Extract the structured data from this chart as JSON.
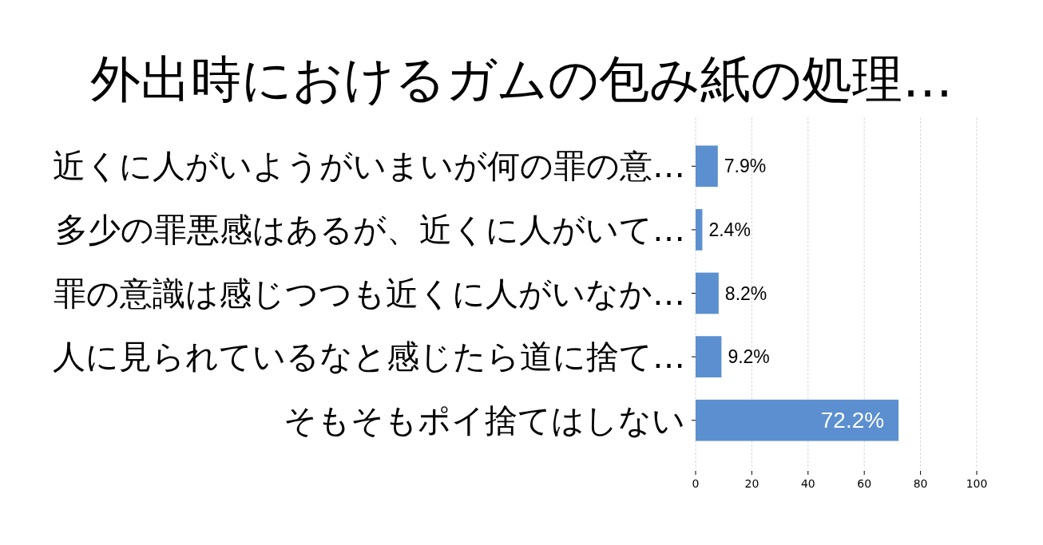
{
  "chart_data": {
    "type": "bar",
    "orientation": "horizontal",
    "title": "外出時におけるガムの包み紙の処理…",
    "categories": [
      "近くに人がいようがいまいが何の罪の意…",
      "多少の罪悪感はあるが、近くに人がいて…",
      "罪の意識は感じつつも近くに人がいなか…",
      "人に見られているなと感じたら道に捨て…",
      "そもそもポイ捨てはしない"
    ],
    "values": [
      7.9,
      2.4,
      8.2,
      9.2,
      72.2
    ],
    "value_labels": [
      "7.9%",
      "2.4%",
      "8.2%",
      "9.2%",
      "72.2%"
    ],
    "color": "#5b8fd0",
    "xlim": [
      0,
      100
    ],
    "xticks": [
      0,
      20,
      40,
      60,
      80,
      100
    ],
    "grid": "x"
  }
}
